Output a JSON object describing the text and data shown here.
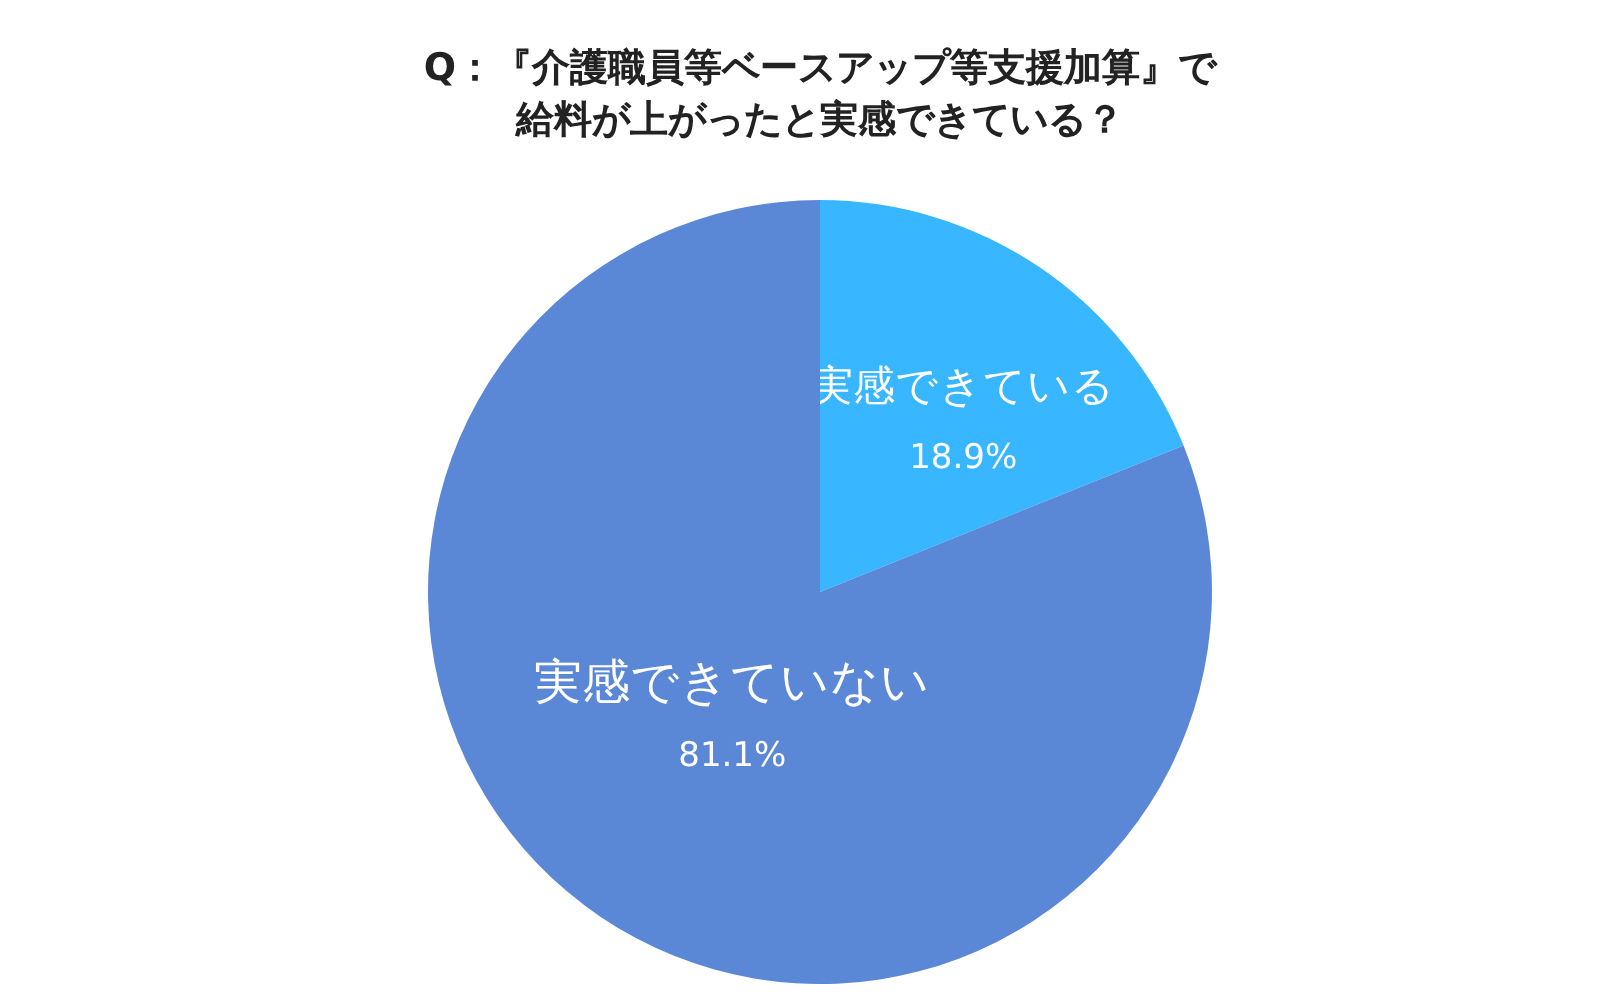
{
  "chart_data": {
    "type": "pie",
    "title": "Q：『介護職員等ベースアップ等支援加算』で給料が上がったと実感できている？",
    "categories": [
      "実感できている",
      "実感できていない"
    ],
    "values": [
      18.9,
      81.1
    ],
    "colors": [
      "#38b6ff",
      "#5b88d6"
    ],
    "value_labels": [
      "18.9%",
      "81.1%"
    ],
    "legend": false
  }
}
